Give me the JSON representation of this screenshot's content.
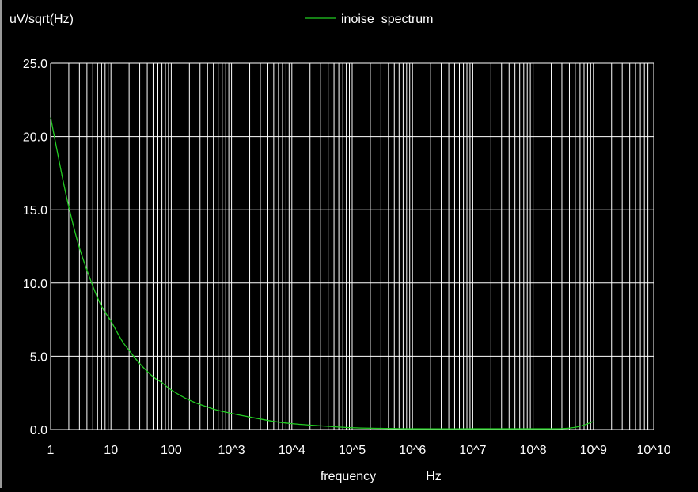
{
  "chart_data": {
    "type": "line",
    "ylabel": "uV/sqrt(Hz)",
    "xlabel": "frequency",
    "xunit": "Hz",
    "xscale": "log",
    "xlim": [
      1,
      10000000000
    ],
    "ylim": [
      0,
      25
    ],
    "grid": true,
    "legend_position": "top-center",
    "x_ticks": [
      {
        "value": 1,
        "label": "1"
      },
      {
        "value": 10,
        "label": "10"
      },
      {
        "value": 100,
        "label": "100"
      },
      {
        "value": 1000,
        "label": "10^3"
      },
      {
        "value": 10000,
        "label": "10^4"
      },
      {
        "value": 100000,
        "label": "10^5"
      },
      {
        "value": 1000000,
        "label": "10^6"
      },
      {
        "value": 10000000,
        "label": "10^7"
      },
      {
        "value": 100000000,
        "label": "10^8"
      },
      {
        "value": 1000000000,
        "label": "10^9"
      },
      {
        "value": 10000000000,
        "label": "10^10"
      }
    ],
    "y_ticks": [
      {
        "value": 0,
        "label": "0.0"
      },
      {
        "value": 5,
        "label": "5.0"
      },
      {
        "value": 10,
        "label": "10.0"
      },
      {
        "value": 15,
        "label": "15.0"
      },
      {
        "value": 20,
        "label": "20.0"
      },
      {
        "value": 25,
        "label": "25.0"
      }
    ],
    "series": [
      {
        "name": "inoise_spectrum",
        "color": "#22cc22",
        "points": [
          [
            1,
            21.3
          ],
          [
            1.5,
            17.6
          ],
          [
            2,
            15.2
          ],
          [
            3,
            12.4
          ],
          [
            5,
            9.8
          ],
          [
            7,
            8.4
          ],
          [
            10,
            7.4
          ],
          [
            15,
            6.1
          ],
          [
            20,
            5.4
          ],
          [
            30,
            4.5
          ],
          [
            50,
            3.6
          ],
          [
            70,
            3.2
          ],
          [
            100,
            2.7
          ],
          [
            200,
            2.0
          ],
          [
            500,
            1.4
          ],
          [
            1000,
            1.1
          ],
          [
            2000,
            0.85
          ],
          [
            5000,
            0.55
          ],
          [
            10000,
            0.4
          ],
          [
            30000,
            0.25
          ],
          [
            100000,
            0.12
          ],
          [
            300000,
            0.08
          ],
          [
            1000000,
            0.05
          ],
          [
            10000000,
            0.05
          ],
          [
            100000000,
            0.05
          ],
          [
            300000000,
            0.06
          ],
          [
            500000000,
            0.15
          ],
          [
            700000000,
            0.3
          ],
          [
            1000000000,
            0.55
          ]
        ]
      }
    ]
  },
  "colors": {
    "background": "#000000",
    "grid": "#ffffff",
    "text": "#ffffff",
    "series": "#22cc22"
  }
}
